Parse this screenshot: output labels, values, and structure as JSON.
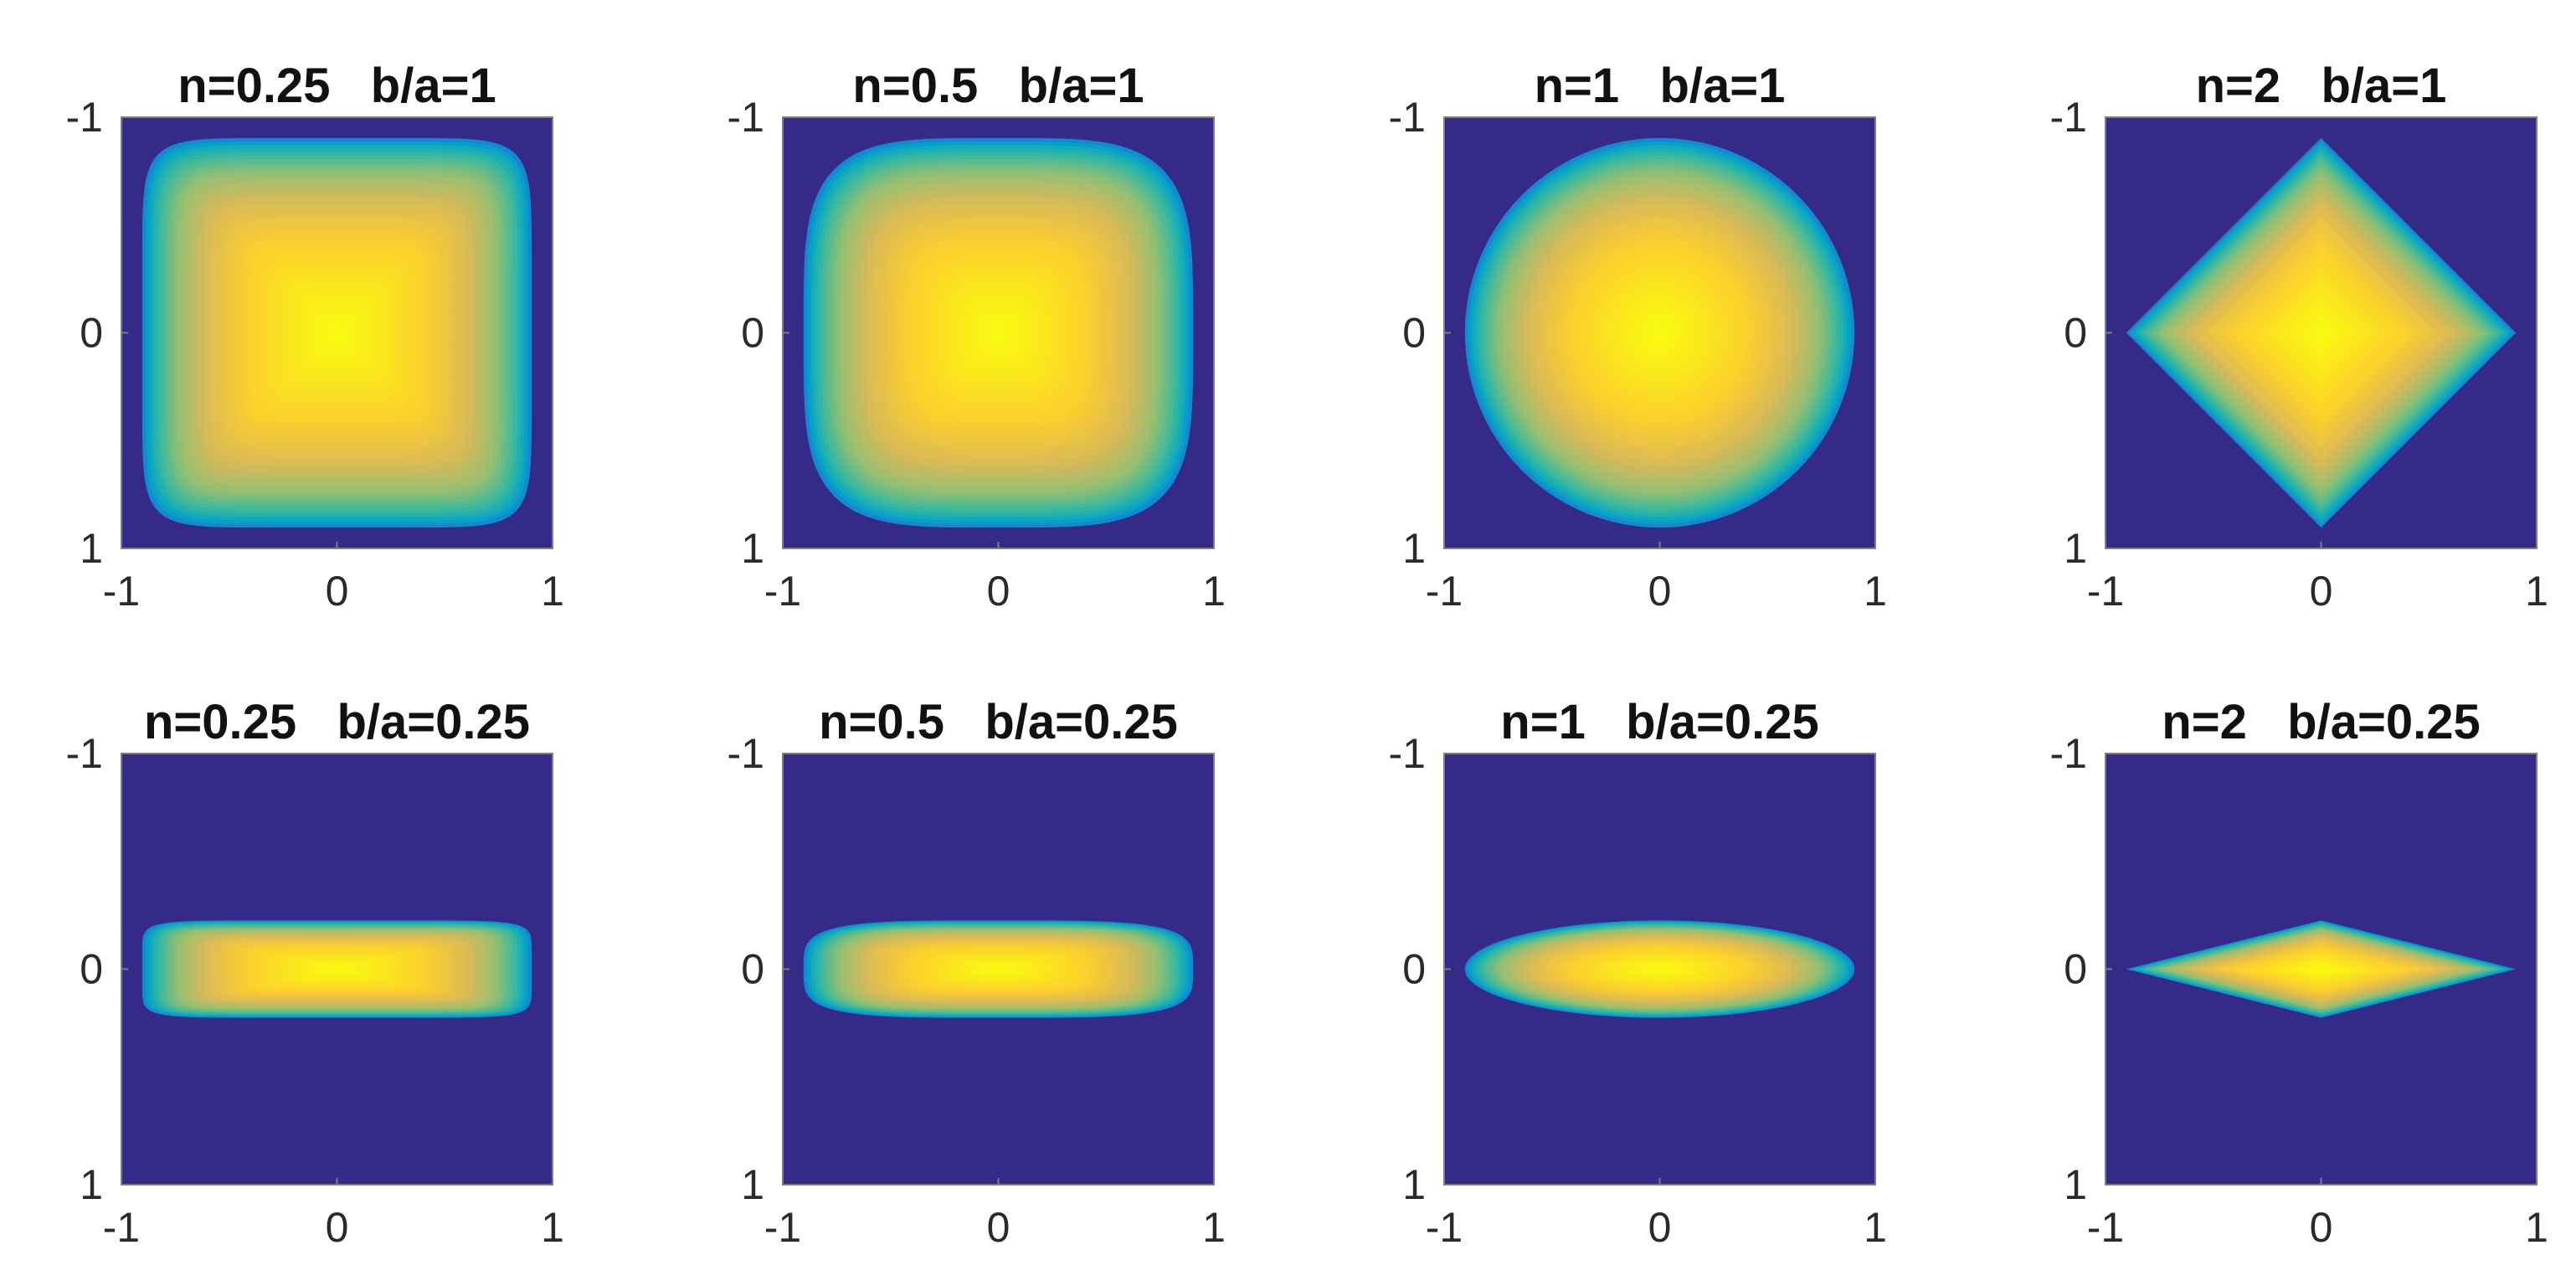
{
  "colors": {
    "background": "#352a87",
    "colormap": [
      "#352a87",
      "#0363e1",
      "#1485d4",
      "#06a7c6",
      "#38b99e",
      "#92bf73",
      "#d9ba56",
      "#fcce2e",
      "#f9fb0e"
    ],
    "axes_box": "#7f7f7f"
  },
  "chart_data": [
    {
      "type": "heatmap",
      "title": "n=0.25   b/a=1",
      "n": 0.25,
      "b_over_a": 1,
      "xlim": [
        -1,
        1
      ],
      "ylim": [
        -1,
        1
      ],
      "y_reversed": true,
      "xticks": [
        "-1",
        "0",
        "1"
      ],
      "yticks": [
        "-1",
        "0",
        "1"
      ]
    },
    {
      "type": "heatmap",
      "title": "n=0.5   b/a=1",
      "n": 0.5,
      "b_over_a": 1,
      "xlim": [
        -1,
        1
      ],
      "ylim": [
        -1,
        1
      ],
      "y_reversed": true,
      "xticks": [
        "-1",
        "0",
        "1"
      ],
      "yticks": [
        "-1",
        "0",
        "1"
      ]
    },
    {
      "type": "heatmap",
      "title": "n=1   b/a=1",
      "n": 1,
      "b_over_a": 1,
      "xlim": [
        -1,
        1
      ],
      "ylim": [
        -1,
        1
      ],
      "y_reversed": true,
      "xticks": [
        "-1",
        "0",
        "1"
      ],
      "yticks": [
        "-1",
        "0",
        "1"
      ]
    },
    {
      "type": "heatmap",
      "title": "n=2   b/a=1",
      "n": 2,
      "b_over_a": 1,
      "xlim": [
        -1,
        1
      ],
      "ylim": [
        -1,
        1
      ],
      "y_reversed": true,
      "xticks": [
        "-1",
        "0",
        "1"
      ],
      "yticks": [
        "-1",
        "0",
        "1"
      ]
    },
    {
      "type": "heatmap",
      "title": "n=0.25   b/a=0.25",
      "n": 0.25,
      "b_over_a": 0.25,
      "xlim": [
        -1,
        1
      ],
      "ylim": [
        -1,
        1
      ],
      "y_reversed": true,
      "xticks": [
        "-1",
        "0",
        "1"
      ],
      "yticks": [
        "-1",
        "0",
        "1"
      ]
    },
    {
      "type": "heatmap",
      "title": "n=0.5   b/a=0.25",
      "n": 0.5,
      "b_over_a": 0.25,
      "xlim": [
        -1,
        1
      ],
      "ylim": [
        -1,
        1
      ],
      "y_reversed": true,
      "xticks": [
        "-1",
        "0",
        "1"
      ],
      "yticks": [
        "-1",
        "0",
        "1"
      ]
    },
    {
      "type": "heatmap",
      "title": "n=1   b/a=0.25",
      "n": 1,
      "b_over_a": 0.25,
      "xlim": [
        -1,
        1
      ],
      "ylim": [
        -1,
        1
      ],
      "y_reversed": true,
      "xticks": [
        "-1",
        "0",
        "1"
      ],
      "yticks": [
        "-1",
        "0",
        "1"
      ]
    },
    {
      "type": "heatmap",
      "title": "n=2   b/a=0.25",
      "n": 2,
      "b_over_a": 0.25,
      "xlim": [
        -1,
        1
      ],
      "ylim": [
        -1,
        1
      ],
      "y_reversed": true,
      "xticks": [
        "-1",
        "0",
        "1"
      ],
      "yticks": [
        "-1",
        "0",
        "1"
      ]
    }
  ]
}
